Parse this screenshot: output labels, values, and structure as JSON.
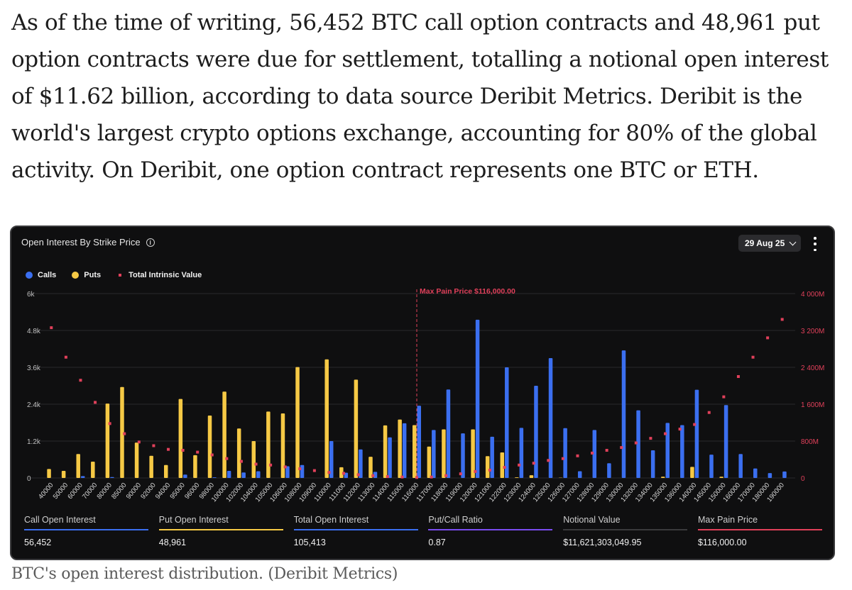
{
  "article": {
    "paragraph": "As of the time of writing, 56,452 BTC call option contracts and 48,961 put option contracts were due for settlement, totalling a notional open interest of $11.62 billion, according to data source Deribit Metrics. Deribit is the world's largest crypto options exchange, accounting for 80% of the global activity. On Deribit, one option contract represents one BTC or ETH."
  },
  "panel": {
    "title": "Open Interest By Strike Price",
    "date_selector": "29 Aug 25"
  },
  "colors": {
    "calls": "#3b6ff0",
    "puts": "#f6c945",
    "intrinsic": "#e0405a",
    "ratio": "#7b4cf0",
    "max_pain": "#e0405a"
  },
  "chart_data": {
    "type": "bar",
    "legend": [
      "Calls",
      "Puts",
      "Total Intrinsic Value"
    ],
    "legend_position": "top-left",
    "categories": [
      "40000",
      "50000",
      "60000",
      "70000",
      "80000",
      "85000",
      "90000",
      "92000",
      "94000",
      "95000",
      "96000",
      "98000",
      "100000",
      "102000",
      "104000",
      "105000",
      "106000",
      "108000",
      "109000",
      "110000",
      "111000",
      "112000",
      "113000",
      "114000",
      "115000",
      "116000",
      "117000",
      "118000",
      "119000",
      "120000",
      "121000",
      "122000",
      "123000",
      "124000",
      "125000",
      "126000",
      "127000",
      "128000",
      "129000",
      "130000",
      "132000",
      "134000",
      "135000",
      "136000",
      "140000",
      "145000",
      "150000",
      "160000",
      "170000",
      "180000",
      "190000"
    ],
    "series": [
      {
        "name": "Calls",
        "axis": "left",
        "values": [
          0,
          0,
          60,
          0,
          30,
          0,
          0,
          0,
          0,
          110,
          0,
          20,
          230,
          180,
          220,
          0,
          380,
          420,
          0,
          1200,
          170,
          930,
          200,
          1320,
          1780,
          2350,
          1560,
          2880,
          1450,
          5150,
          1340,
          3600,
          1630,
          3000,
          3900,
          1620,
          220,
          1560,
          480,
          4150,
          2200,
          900,
          1790,
          1720,
          2870,
          760,
          2370,
          780,
          310,
          160,
          210
        ]
      },
      {
        "name": "Puts",
        "axis": "left",
        "values": [
          290,
          230,
          780,
          530,
          2420,
          2960,
          1150,
          720,
          420,
          2570,
          740,
          2030,
          2810,
          1610,
          1200,
          2160,
          2100,
          3610,
          0,
          3860,
          350,
          3200,
          690,
          1710,
          1900,
          1720,
          1020,
          1580,
          0,
          1580,
          710,
          830,
          20,
          90,
          0,
          10,
          0,
          0,
          0,
          0,
          0,
          0,
          40,
          0,
          360,
          0,
          40,
          0,
          0,
          0,
          0
        ]
      },
      {
        "name": "Total Intrinsic Value",
        "axis": "right",
        "values": [
          3260,
          2620,
          2120,
          1640,
          1180,
          960,
          780,
          700,
          620,
          600,
          560,
          500,
          420,
          360,
          300,
          280,
          240,
          200,
          160,
          120,
          100,
          70,
          50,
          30,
          20,
          10,
          20,
          50,
          90,
          140,
          170,
          230,
          280,
          320,
          380,
          420,
          480,
          540,
          600,
          660,
          760,
          860,
          960,
          1060,
          1160,
          1420,
          1760,
          2200,
          2620,
          3040,
          3440
        ]
      }
    ],
    "y_left": {
      "min": 0,
      "max": 6000,
      "ticks": [
        "0",
        "1.2k",
        "2.4k",
        "3.6k",
        "4.8k",
        "6k"
      ]
    },
    "y_right": {
      "min": 0,
      "max": 4000,
      "ticks": [
        "0",
        "800M",
        "1 600M",
        "2 400M",
        "3 200M",
        "4 000M"
      ]
    },
    "max_pain": {
      "label": "Max Pain Price $116,000.00",
      "strike": "116000"
    },
    "grid": true
  },
  "stats": [
    {
      "label": "Call Open Interest",
      "value": "56,452",
      "color": "#3b6ff0"
    },
    {
      "label": "Put Open Interest",
      "value": "48,961",
      "color": "#f6c945"
    },
    {
      "label": "Total Open Interest",
      "value": "105,413",
      "color": "#3b6ff0"
    },
    {
      "label": "Put/Call Ratio",
      "value": "0.87",
      "color": "#7b4cf0"
    },
    {
      "label": "Notional Value",
      "value": "$11,621,303,049.95",
      "color": "#3a3a3c"
    },
    {
      "label": "Max Pain Price",
      "value": "$116,000.00",
      "color": "#e0405a"
    }
  ],
  "caption": "BTC's open interest distribution. (Deribit Metrics)"
}
